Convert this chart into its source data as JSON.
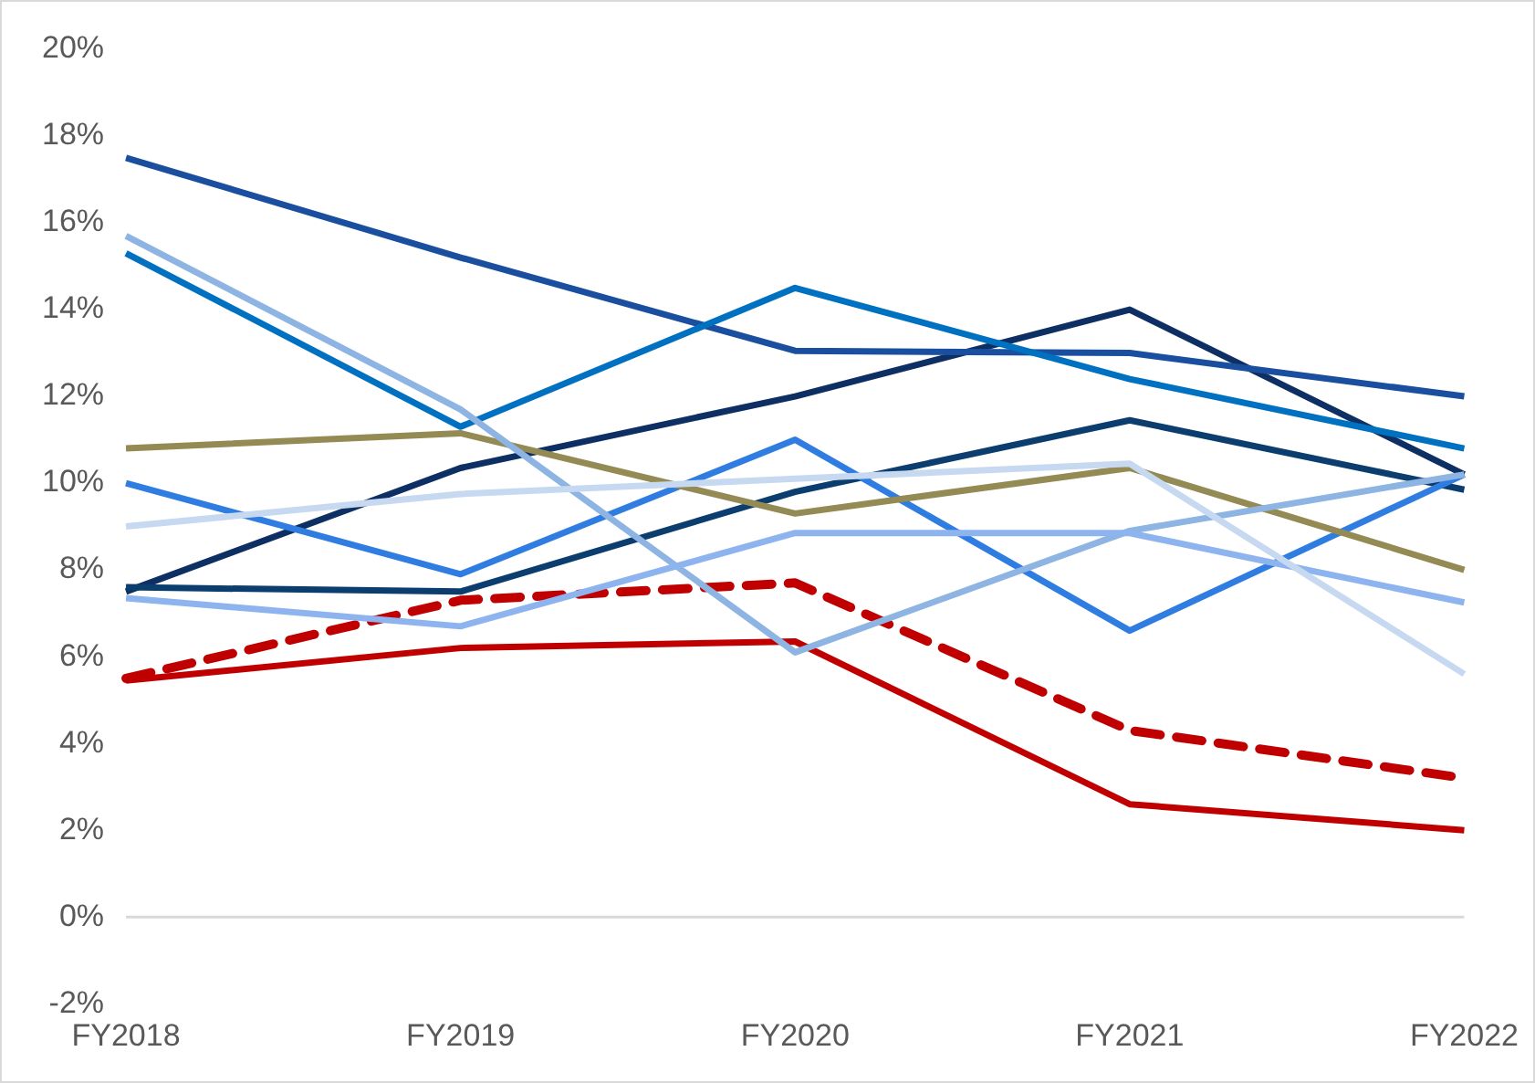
{
  "chart_data": {
    "type": "line",
    "categories": [
      "FY2018",
      "FY2019",
      "FY2020",
      "FY2021",
      "FY2022"
    ],
    "ylim": [
      -2,
      20
    ],
    "yticks": [
      {
        "value": -2,
        "label": "-2%"
      },
      {
        "value": 0,
        "label": "0%"
      },
      {
        "value": 2,
        "label": "2%"
      },
      {
        "value": 4,
        "label": "4%"
      },
      {
        "value": 6,
        "label": "6%"
      },
      {
        "value": 8,
        "label": "8%"
      },
      {
        "value": 10,
        "label": "10%"
      },
      {
        "value": 12,
        "label": "12%"
      },
      {
        "value": 14,
        "label": "14%"
      },
      {
        "value": 16,
        "label": "16%"
      },
      {
        "value": 18,
        "label": "18%"
      },
      {
        "value": 20,
        "label": "20%"
      }
    ],
    "grid": false,
    "legend": false,
    "marker": "none",
    "line_style": "solid",
    "ref_lines": [
      {
        "axis": "y",
        "value": 0,
        "color": "#d9d9d9"
      }
    ],
    "series": [
      {
        "color": "#c6d9f1",
        "values": [
          9.0,
          9.75,
          10.1,
          10.45,
          5.6
        ]
      },
      {
        "color": "#8eb4f0",
        "values": [
          7.35,
          6.7,
          8.85,
          8.85,
          7.25
        ]
      },
      {
        "color": "#8db4e2",
        "values": [
          15.7,
          11.7,
          6.1,
          8.9,
          10.2
        ]
      },
      {
        "color": "#948a54",
        "values": [
          10.8,
          11.15,
          9.3,
          10.35,
          8.0
        ]
      },
      {
        "color": "#2f7de1",
        "values": [
          10.0,
          7.9,
          11.0,
          6.6,
          10.2
        ]
      },
      {
        "color": "#0070c0",
        "values": [
          15.3,
          11.3,
          14.5,
          12.4,
          10.8
        ]
      },
      {
        "color": "#1a4fa0",
        "values": [
          17.5,
          15.2,
          13.05,
          13.0,
          12.0
        ]
      },
      {
        "color": "#0b3d6e",
        "values": [
          7.6,
          7.5,
          9.8,
          11.45,
          9.85
        ]
      },
      {
        "color": "#0e2f63",
        "values": [
          7.5,
          10.35,
          12.0,
          14.0,
          10.2
        ]
      },
      {
        "color": "#c00000",
        "line_style": "dashed",
        "values": [
          5.5,
          7.3,
          7.7,
          4.3,
          3.2
        ]
      },
      {
        "color": "#c00000",
        "values": [
          5.45,
          6.2,
          6.35,
          2.6,
          2.0
        ]
      }
    ]
  }
}
